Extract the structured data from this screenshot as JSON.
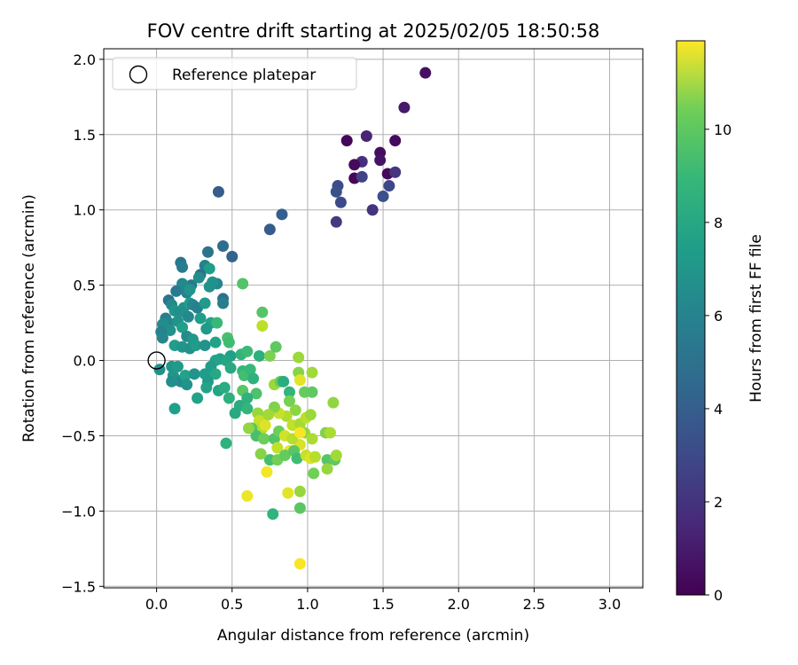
{
  "chart_data": {
    "type": "scatter",
    "title": "FOV centre drift starting at 2025/02/05 18:50:58",
    "xlabel": "Angular distance from reference (arcmin)",
    "ylabel": "Rotation from reference (arcmin)",
    "xlim": [
      -0.35,
      3.22
    ],
    "ylim": [
      -1.51,
      2.07
    ],
    "xticks": [
      0.0,
      0.5,
      1.0,
      1.5,
      2.0,
      2.5,
      3.0
    ],
    "xtick_labels": [
      "0.0",
      "0.5",
      "1.0",
      "1.5",
      "2.0",
      "2.5",
      "3.0"
    ],
    "yticks": [
      -1.5,
      -1.0,
      -0.5,
      0.0,
      0.5,
      1.0,
      1.5,
      2.0
    ],
    "ytick_labels": [
      "−1.5",
      "−1.0",
      "−0.5",
      "0.0",
      "0.5",
      "1.0",
      "1.5",
      "2.0"
    ],
    "grid": true,
    "legend": {
      "placement": "upper-left",
      "entries": [
        "Reference platepar"
      ]
    },
    "reference_point": {
      "x": 0.0,
      "y": 0.0
    },
    "colorbar": {
      "label": "Hours from first FF file",
      "colormap": "viridis",
      "range": [
        0,
        11.9
      ],
      "ticks": [
        0,
        2,
        4,
        6,
        8,
        10
      ],
      "tick_labels": [
        "0",
        "2",
        "4",
        "6",
        "8",
        "10"
      ]
    },
    "points": [
      [
        1.78,
        1.91,
        0.5
      ],
      [
        1.64,
        1.68,
        0.8
      ],
      [
        1.58,
        1.46,
        0.3
      ],
      [
        1.39,
        1.49,
        1.2
      ],
      [
        1.26,
        1.46,
        0.2
      ],
      [
        1.48,
        1.38,
        0.4
      ],
      [
        1.48,
        1.33,
        0.6
      ],
      [
        1.36,
        1.32,
        1.6
      ],
      [
        1.31,
        1.3,
        0.3
      ],
      [
        1.53,
        1.24,
        0.2
      ],
      [
        1.58,
        1.25,
        1.9
      ],
      [
        1.31,
        1.21,
        0.2
      ],
      [
        1.36,
        1.22,
        2.4
      ],
      [
        1.54,
        1.16,
        2.6
      ],
      [
        1.2,
        1.16,
        2.8
      ],
      [
        1.19,
        1.12,
        3.0
      ],
      [
        1.5,
        1.09,
        2.9
      ],
      [
        1.22,
        1.05,
        2.7
      ],
      [
        1.43,
        1.0,
        1.8
      ],
      [
        1.19,
        0.92,
        2.1
      ],
      [
        0.41,
        1.12,
        3.5
      ],
      [
        0.83,
        0.97,
        3.6
      ],
      [
        0.75,
        0.87,
        3.4
      ],
      [
        0.44,
        0.76,
        4.2
      ],
      [
        0.5,
        0.69,
        3.8
      ],
      [
        0.34,
        0.72,
        4.6
      ],
      [
        0.16,
        0.65,
        4.7
      ],
      [
        0.17,
        0.62,
        5.0
      ],
      [
        0.32,
        0.63,
        5.2
      ],
      [
        0.35,
        0.61,
        6.6
      ],
      [
        0.4,
        0.51,
        5.4
      ],
      [
        0.29,
        0.57,
        4.4
      ],
      [
        0.23,
        0.5,
        4.8
      ],
      [
        0.17,
        0.51,
        5.6
      ],
      [
        0.13,
        0.46,
        4.9
      ],
      [
        0.2,
        0.45,
        5.3
      ],
      [
        0.35,
        0.49,
        6.0
      ],
      [
        0.37,
        0.52,
        6.1
      ],
      [
        0.22,
        0.47,
        6.2
      ],
      [
        0.28,
        0.55,
        5.8
      ],
      [
        0.44,
        0.41,
        4.3
      ],
      [
        0.44,
        0.38,
        5.1
      ],
      [
        0.08,
        0.4,
        4.6
      ],
      [
        0.1,
        0.37,
        5.7
      ],
      [
        0.12,
        0.33,
        6.3
      ],
      [
        0.15,
        0.32,
        5.9
      ],
      [
        0.18,
        0.35,
        6.0
      ],
      [
        0.22,
        0.38,
        6.5
      ],
      [
        0.24,
        0.37,
        5.5
      ],
      [
        0.27,
        0.35,
        5.2
      ],
      [
        0.32,
        0.38,
        6.4
      ],
      [
        0.57,
        0.51,
        8.6
      ],
      [
        0.06,
        0.28,
        5.1
      ],
      [
        0.08,
        0.25,
        5.4
      ],
      [
        0.09,
        0.2,
        6.0
      ],
      [
        0.04,
        0.24,
        5.8
      ],
      [
        0.03,
        0.19,
        5.3
      ],
      [
        0.14,
        0.26,
        6.1
      ],
      [
        0.17,
        0.22,
        6.7
      ],
      [
        0.21,
        0.29,
        5.6
      ],
      [
        0.29,
        0.28,
        6.6
      ],
      [
        0.36,
        0.25,
        6.8
      ],
      [
        0.4,
        0.25,
        8.0
      ],
      [
        0.33,
        0.21,
        6.4
      ],
      [
        0.2,
        0.16,
        5.7
      ],
      [
        0.24,
        0.14,
        6.3
      ],
      [
        0.04,
        0.15,
        5.5
      ],
      [
        0.12,
        0.1,
        6.6
      ],
      [
        0.17,
        0.09,
        6.2
      ],
      [
        0.22,
        0.08,
        6.0
      ],
      [
        0.26,
        0.1,
        6.5
      ],
      [
        0.32,
        0.1,
        6.1
      ],
      [
        0.39,
        0.12,
        6.8
      ],
      [
        0.42,
        0.01,
        6.6
      ],
      [
        0.39,
        0.0,
        6.9
      ],
      [
        0.47,
        0.15,
        8.4
      ],
      [
        0.48,
        0.12,
        8.2
      ],
      [
        0.49,
        0.03,
        6.7
      ],
      [
        0.46,
        0.0,
        7.0
      ],
      [
        0.49,
        -0.05,
        7.2
      ],
      [
        0.56,
        0.04,
        7.8
      ],
      [
        0.6,
        0.06,
        8.1
      ],
      [
        0.68,
        0.03,
        7.5
      ],
      [
        0.75,
        0.03,
        9.5
      ],
      [
        0.79,
        0.09,
        8.9
      ],
      [
        0.7,
        0.32,
        8.7
      ],
      [
        0.7,
        0.23,
        10.7
      ],
      [
        0.94,
        0.02,
        10.1
      ],
      [
        0.02,
        -0.06,
        6.0
      ],
      [
        0.1,
        -0.04,
        6.2
      ],
      [
        0.14,
        -0.04,
        6.4
      ],
      [
        0.11,
        -0.1,
        6.3
      ],
      [
        0.13,
        -0.13,
        6.1
      ],
      [
        0.16,
        -0.14,
        5.6
      ],
      [
        0.1,
        -0.14,
        5.9
      ],
      [
        0.19,
        -0.1,
        6.8
      ],
      [
        0.25,
        -0.09,
        6.2
      ],
      [
        0.32,
        -0.09,
        6.6
      ],
      [
        0.36,
        -0.04,
        6.5
      ],
      [
        0.39,
        -0.09,
        7.1
      ],
      [
        0.34,
        -0.14,
        6.4
      ],
      [
        0.33,
        -0.18,
        6.9
      ],
      [
        0.41,
        -0.2,
        7.0
      ],
      [
        0.45,
        -0.18,
        7.3
      ],
      [
        0.48,
        -0.25,
        7.5
      ],
      [
        0.27,
        -0.25,
        6.8
      ],
      [
        0.2,
        -0.16,
        6.1
      ],
      [
        0.12,
        -0.32,
        6.7
      ],
      [
        0.57,
        -0.07,
        7.9
      ],
      [
        0.58,
        -0.1,
        8.3
      ],
      [
        0.62,
        -0.06,
        8.0
      ],
      [
        0.64,
        -0.12,
        7.6
      ],
      [
        0.66,
        -0.22,
        8.5
      ],
      [
        0.57,
        -0.2,
        8.8
      ],
      [
        0.6,
        -0.25,
        7.6
      ],
      [
        0.55,
        -0.3,
        7.3
      ],
      [
        0.52,
        -0.35,
        7.2
      ],
      [
        0.6,
        -0.32,
        7.8
      ],
      [
        0.67,
        -0.35,
        10.0
      ],
      [
        0.68,
        -0.4,
        10.9
      ],
      [
        0.7,
        -0.45,
        10.6
      ],
      [
        0.72,
        -0.43,
        11.3
      ],
      [
        0.63,
        -0.45,
        8.7
      ],
      [
        0.66,
        -0.5,
        8.4
      ],
      [
        0.71,
        -0.52,
        9.2
      ],
      [
        0.78,
        -0.52,
        8.6
      ],
      [
        0.78,
        -0.16,
        10.1
      ],
      [
        0.82,
        -0.14,
        9.0
      ],
      [
        0.84,
        -0.14,
        7.4
      ],
      [
        0.88,
        -0.21,
        7.8
      ],
      [
        0.94,
        -0.08,
        9.7
      ],
      [
        0.95,
        -0.13,
        11.4
      ],
      [
        1.03,
        -0.08,
        10.2
      ],
      [
        0.98,
        -0.21,
        9.1
      ],
      [
        1.03,
        -0.21,
        8.9
      ],
      [
        0.88,
        -0.27,
        9.4
      ],
      [
        0.92,
        -0.33,
        9.8
      ],
      [
        0.86,
        -0.37,
        10.5
      ],
      [
        0.81,
        -0.35,
        10.9
      ],
      [
        0.78,
        -0.31,
        9.6
      ],
      [
        0.74,
        -0.36,
        10.2
      ],
      [
        0.9,
        -0.43,
        10.8
      ],
      [
        0.95,
        -0.42,
        10.3
      ],
      [
        0.99,
        -0.38,
        10.7
      ],
      [
        1.02,
        -0.36,
        10.1
      ],
      [
        0.98,
        -0.48,
        9.9
      ],
      [
        1.03,
        -0.52,
        10.4
      ],
      [
        0.95,
        -0.56,
        11.2
      ],
      [
        0.88,
        -0.6,
        11.6
      ],
      [
        0.8,
        -0.58,
        10.8
      ],
      [
        0.75,
        -0.66,
        8.3
      ],
      [
        0.8,
        -0.66,
        9.3
      ],
      [
        0.85,
        -0.63,
        9.0
      ],
      [
        0.91,
        -0.6,
        8.8
      ],
      [
        0.93,
        -0.65,
        8.2
      ],
      [
        0.99,
        -0.63,
        10.9
      ],
      [
        1.02,
        -0.65,
        11.3
      ],
      [
        1.05,
        -0.64,
        10.6
      ],
      [
        1.04,
        -0.75,
        9.3
      ],
      [
        1.13,
        -0.66,
        8.7
      ],
      [
        1.13,
        -0.72,
        10.0
      ],
      [
        1.18,
        -0.66,
        8.9
      ],
      [
        1.19,
        -0.63,
        10.2
      ],
      [
        1.12,
        -0.48,
        9.6
      ],
      [
        1.15,
        -0.48,
        10.4
      ],
      [
        1.17,
        -0.28,
        9.9
      ],
      [
        0.69,
        -0.62,
        9.7
      ],
      [
        0.61,
        -0.45,
        9.9
      ],
      [
        0.81,
        -0.47,
        9.2
      ],
      [
        0.85,
        -0.5,
        11.1
      ],
      [
        0.9,
        -0.52,
        10.6
      ],
      [
        0.95,
        -0.48,
        11.8
      ],
      [
        0.6,
        -0.9,
        11.6
      ],
      [
        0.73,
        -0.74,
        11.7
      ],
      [
        0.87,
        -0.88,
        11.4
      ],
      [
        0.95,
        -0.87,
        10.0
      ],
      [
        0.95,
        -0.98,
        8.8
      ],
      [
        0.77,
        -1.02,
        7.7
      ],
      [
        0.95,
        -1.35,
        11.8
      ],
      [
        0.46,
        -0.55,
        7.6
      ]
    ]
  }
}
